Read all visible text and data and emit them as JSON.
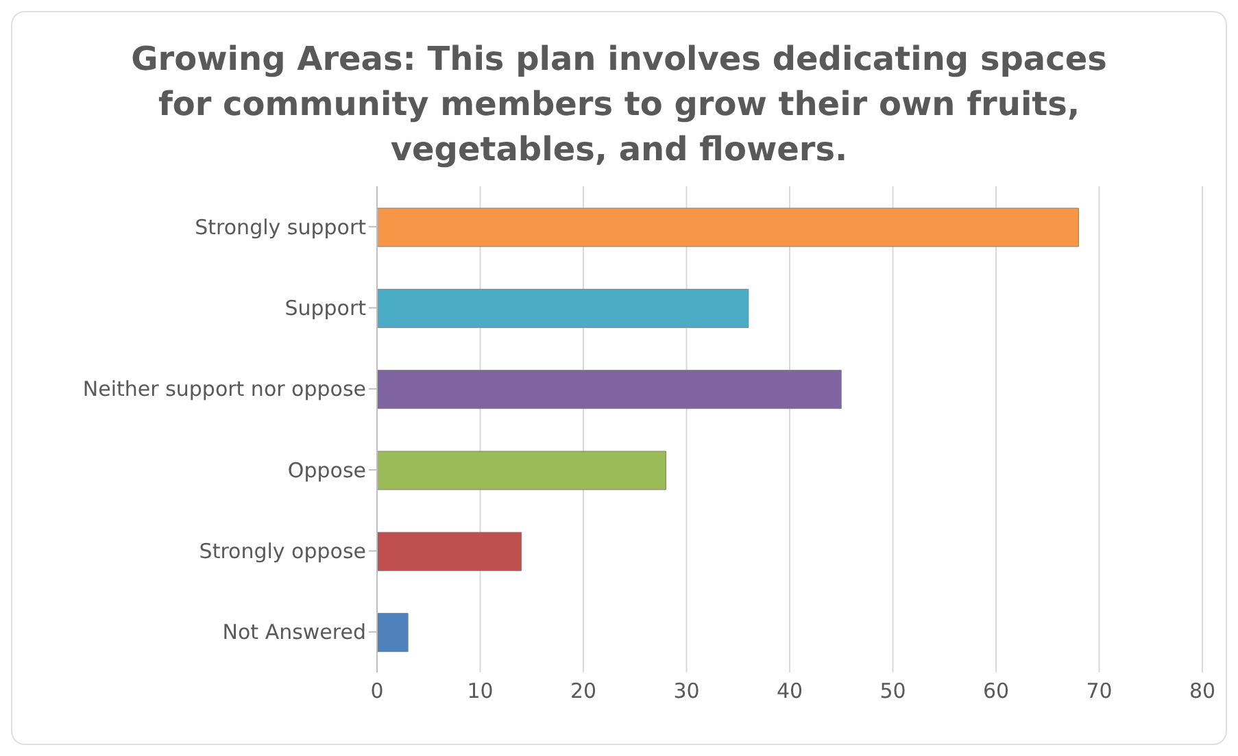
{
  "chart_data": {
    "type": "bar",
    "orientation": "horizontal",
    "title": "Growing Areas: This plan involves dedicating spaces for community members to grow their own fruits, vegetables, and flowers.",
    "categories": [
      "Strongly support",
      "Support",
      "Neither support nor oppose",
      "Oppose",
      "Strongly oppose",
      "Not Answered"
    ],
    "values": [
      68,
      36,
      45,
      28,
      14,
      3
    ],
    "colors": [
      "#f79646",
      "#4bacc6",
      "#8064a2",
      "#9bbb59",
      "#c0504d",
      "#4f81bd"
    ],
    "xlim": [
      0,
      80
    ],
    "xticks": [
      0,
      10,
      20,
      30,
      40,
      50,
      60,
      70,
      80
    ],
    "grid": "x"
  }
}
